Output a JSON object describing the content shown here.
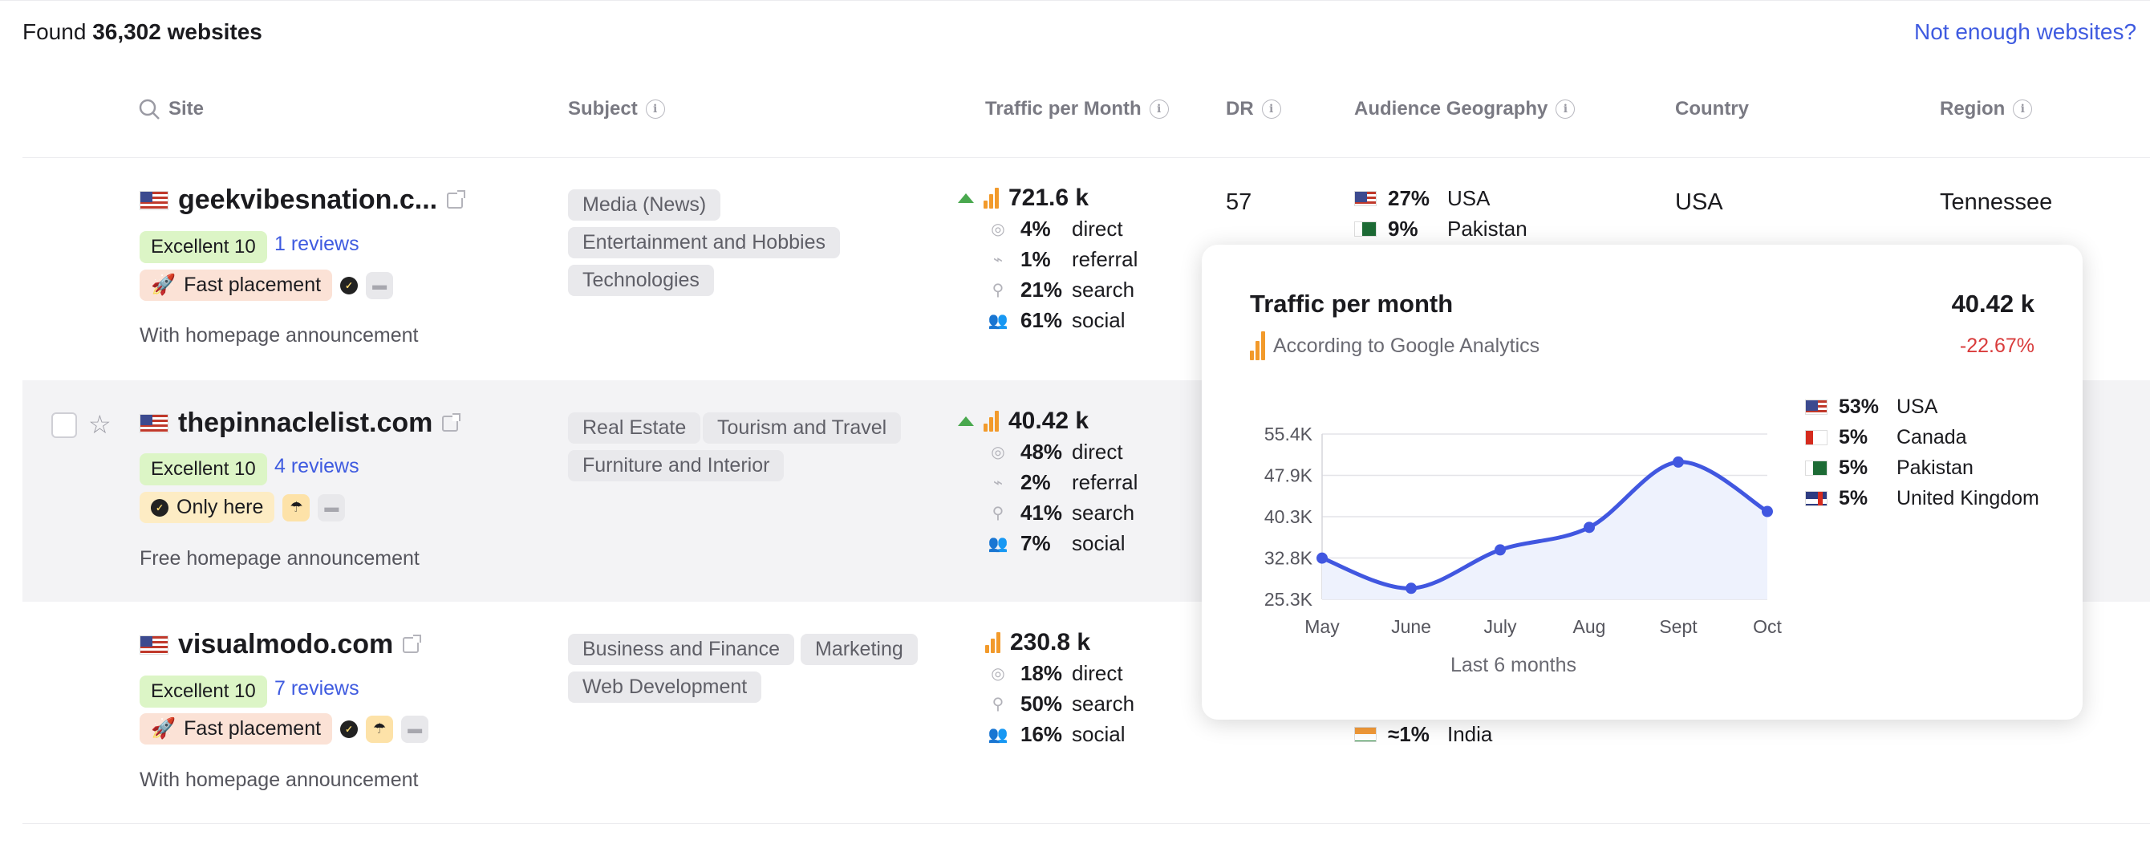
{
  "header": {
    "found_prefix": "Found",
    "found_count": "36,302 websites",
    "not_enough_link": "Not enough websites?"
  },
  "columns": {
    "site": "Site",
    "subject": "Subject",
    "traffic": "Traffic per Month",
    "dr": "DR",
    "geography": "Audience Geography",
    "country": "Country",
    "region": "Region"
  },
  "rows": [
    {
      "site": "geekvibesnation.c...",
      "rating": "Excellent 10",
      "reviews": "1 reviews",
      "placement": "Fast placement",
      "announcement": "With homepage announcement",
      "subjects": [
        "Media (News)",
        "Entertainment and Hobbies",
        "Technologies"
      ],
      "traffic_total": "721.6 k",
      "traffic_breakdown": [
        {
          "pct": "4%",
          "label": "direct",
          "icon": "target-icon"
        },
        {
          "pct": "1%",
          "label": "referral",
          "icon": "link-icon"
        },
        {
          "pct": "21%",
          "label": "search",
          "icon": "search-icon"
        },
        {
          "pct": "61%",
          "label": "social",
          "icon": "users-icon"
        }
      ],
      "dr": "57",
      "geo": [
        {
          "pct": "27%",
          "country": "USA"
        },
        {
          "pct": "9%",
          "country": "Pakistan"
        }
      ],
      "country": "USA",
      "region": "Tennessee"
    },
    {
      "site": "thepinnaclelist.com",
      "rating": "Excellent 10",
      "reviews": "4 reviews",
      "placement": "Only here",
      "announcement": "Free homepage announcement",
      "subjects": [
        "Real Estate",
        "Tourism and Travel",
        "Furniture and Interior"
      ],
      "traffic_total": "40.42 k",
      "traffic_breakdown": [
        {
          "pct": "48%",
          "label": "direct",
          "icon": "target-icon"
        },
        {
          "pct": "2%",
          "label": "referral",
          "icon": "link-icon"
        },
        {
          "pct": "41%",
          "label": "search",
          "icon": "search-icon"
        },
        {
          "pct": "7%",
          "label": "social",
          "icon": "users-icon"
        }
      ]
    },
    {
      "site": "visualmodo.com",
      "rating": "Excellent 10",
      "reviews": "7 reviews",
      "placement": "Fast placement",
      "announcement": "With homepage announcement",
      "subjects": [
        "Business and Finance",
        "Marketing",
        "Web Development"
      ],
      "traffic_total": "230.8 k",
      "traffic_breakdown": [
        {
          "pct": "18%",
          "label": "direct",
          "icon": "target-icon"
        },
        {
          "pct": "50%",
          "label": "search",
          "icon": "search-icon"
        },
        {
          "pct": "16%",
          "label": "social",
          "icon": "users-icon"
        }
      ],
      "geo": [
        {
          "pct": "≈1%",
          "country": "India"
        }
      ]
    }
  ],
  "popup": {
    "title": "Traffic per month",
    "value": "40.42 k",
    "change": "-22.67%",
    "source": "According to Google Analytics",
    "footer": "Last 6 months",
    "legend": [
      {
        "pct": "53%",
        "country": "USA"
      },
      {
        "pct": "5%",
        "country": "Canada"
      },
      {
        "pct": "5%",
        "country": "Pakistan"
      },
      {
        "pct": "5%",
        "country": "United Kingdom"
      }
    ]
  },
  "chart_data": {
    "type": "line",
    "categories": [
      "May",
      "June",
      "July",
      "Aug",
      "Sept",
      "Oct"
    ],
    "values": [
      32800,
      27300,
      34300,
      38400,
      50300,
      41300
    ],
    "ytick_labels": [
      "55.4K",
      "47.9K",
      "40.3K",
      "32.8K",
      "25.3K"
    ],
    "ylim": [
      25300,
      55400
    ],
    "grid": true,
    "line_color": "#4157e0",
    "fill_color": "#eef2fd"
  },
  "colors": {
    "accent": "#3f5be0",
    "excellent_bg": "#dcf5c6",
    "fast_bg": "#fbe2d6",
    "only_bg": "#fdecc4",
    "negative": "#d93c3c",
    "trend_up": "#49a84e",
    "bars": "#f29a2b"
  }
}
